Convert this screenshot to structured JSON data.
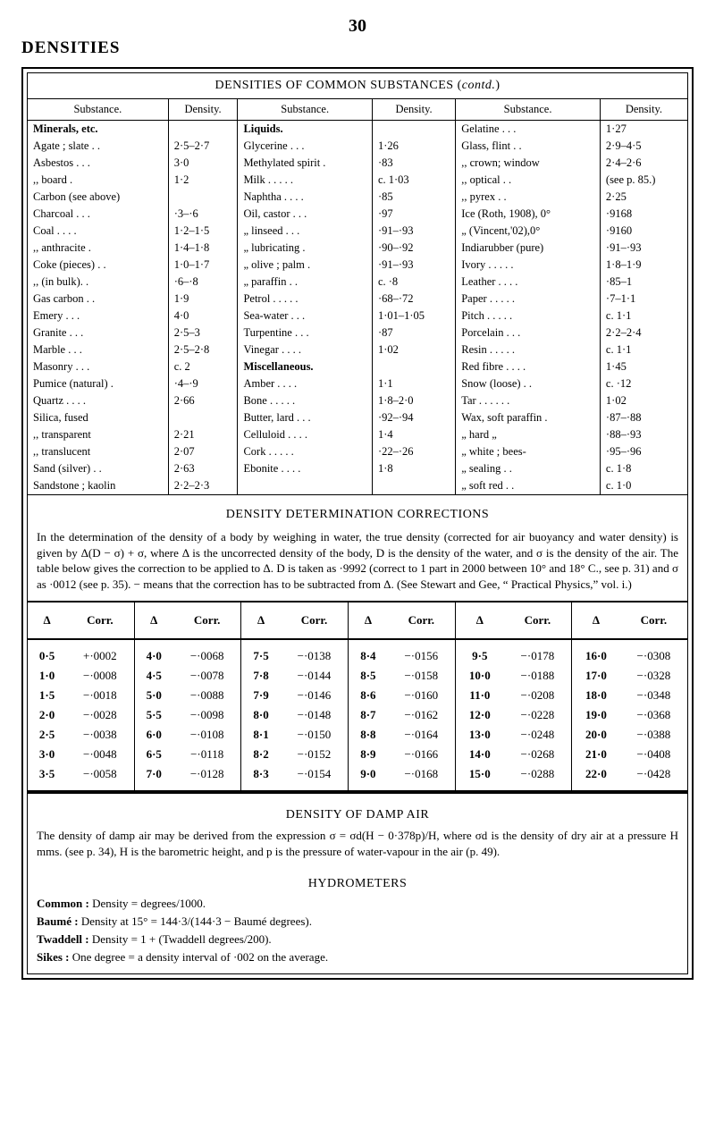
{
  "page_number": "30",
  "section_title": "DENSITIES",
  "table1": {
    "title_pre": "DENSITIES OF COMMON SUBSTANCES (",
    "title_contd": "contd.",
    "title_post": ")",
    "col_subst": "Substance.",
    "col_dens": "Density.",
    "col1": {
      "group": "Minerals, etc.",
      "rows": [
        {
          "name": "Agate ; slate .  .",
          "dens": "2·5–2·7"
        },
        {
          "name": "Asbestos  .  .  .",
          "dens": "3·0"
        },
        {
          "name": "   ,,      board    .",
          "dens": "1·2"
        },
        {
          "name": "Carbon (see above)",
          "dens": ""
        },
        {
          "name": "Charcoal  .  .  .",
          "dens": "·3–·6"
        },
        {
          "name": "Coal   .  .  .  .",
          "dens": "1·2–1·5"
        },
        {
          "name": "  ,,  anthracite  .",
          "dens": "1·4–1·8"
        },
        {
          "name": "Coke (pieces) .  .",
          "dens": "1·0–1·7"
        },
        {
          "name": "  ,,  (in bulk).  .",
          "dens": "·6–·8"
        },
        {
          "name": "Gas carbon   .  .",
          "dens": "1·9"
        },
        {
          "name": "Emery     .  .  .",
          "dens": "4·0"
        },
        {
          "name": "Granite    .  .  .",
          "dens": "2·5–3"
        },
        {
          "name": "Marble    .  .  .",
          "dens": "2·5–2·8"
        },
        {
          "name": "Masonry  .  .  .",
          "dens": "c. 2"
        },
        {
          "name": "Pumice (natural) .",
          "dens": "·4–·9"
        },
        {
          "name": "Quartz .  .  .  .",
          "dens": "2·66"
        },
        {
          "name": "Silica, fused",
          "dens": ""
        },
        {
          "name": "  ,,   transparent",
          "dens": "2·21"
        },
        {
          "name": "  ,,   translucent",
          "dens": "2·07"
        },
        {
          "name": "Sand (silver) .  .",
          "dens": "2·63"
        },
        {
          "name": "Sandstone ; kaolin",
          "dens": "2·2–2·3"
        }
      ]
    },
    "col2": {
      "group1": "Liquids.",
      "rows1": [
        {
          "name": "Glycerine   .  .  .",
          "dens": "1·26"
        },
        {
          "name": "Methylated spirit .",
          "dens": "·83"
        },
        {
          "name": "Milk  .  .  .  .  .",
          "dens": "c. 1·03"
        },
        {
          "name": "Naphtha .  .  .  .",
          "dens": "·85"
        },
        {
          "name": "Oil, castor  .  .  .",
          "dens": "·97"
        },
        {
          "name": "  „  linseed .  .  .",
          "dens": "·91–·93"
        },
        {
          "name": "  „  lubricating  .",
          "dens": "·90–·92"
        },
        {
          "name": "  „  olive ; palm .",
          "dens": "·91–·93"
        },
        {
          "name": "  „  paraffin   .  .",
          "dens": "c. ·8"
        },
        {
          "name": "Petrol .  .  .  .  .",
          "dens": "·68–·72"
        },
        {
          "name": "Sea-water   .  .  .",
          "dens": "1·01–1·05"
        },
        {
          "name": "Turpentine .  .  .",
          "dens": "·87"
        },
        {
          "name": "Vinegar .  .  .  .",
          "dens": "1·02"
        }
      ],
      "group2": "Miscellaneous.",
      "rows2": [
        {
          "name": "Amber   .  .  .  .",
          "dens": "1·1"
        },
        {
          "name": "Bone .  .  .  .  .",
          "dens": "1·8–2·0"
        },
        {
          "name": "Butter, lard .  .  .",
          "dens": "·92–·94"
        },
        {
          "name": "Celluloid .  .  .  .",
          "dens": "1·4"
        },
        {
          "name": "Cork .  .  .  .  .",
          "dens": "·22–·26"
        },
        {
          "name": "Ebonite .  .  .  .",
          "dens": "1·8"
        }
      ]
    },
    "col3": {
      "rows": [
        {
          "name": "Gelatine    .  .  .",
          "dens": "1·27"
        },
        {
          "name": "Glass, flint    .  .",
          "dens": "2·9–4·5"
        },
        {
          "name": "  ,,  crown; window",
          "dens": "2·4–2·6"
        },
        {
          "name": "  ,,   optical .  .",
          "dens": "(see p. 85.)"
        },
        {
          "name": "  ,,   pyrex   .  .",
          "dens": "2·25"
        },
        {
          "name": "Ice (Roth, 1908), 0°",
          "dens": "·9168"
        },
        {
          "name": "  „  (Vincent,'02),0°",
          "dens": "·9160"
        },
        {
          "name": "Indiarubber (pure)",
          "dens": "·91–·93"
        },
        {
          "name": "Ivory .  .  .  .  .",
          "dens": "1·8–1·9"
        },
        {
          "name": "Leather  .  .  .  .",
          "dens": "·85–1"
        },
        {
          "name": "Paper .  .  .  .  .",
          "dens": "·7–1·1"
        },
        {
          "name": "Pitch .  .  .  .  .",
          "dens": "c. 1·1"
        },
        {
          "name": "Porcelain  .  .  .",
          "dens": "2·2–2·4"
        },
        {
          "name": "Resin .  .  .  .  .",
          "dens": "c. 1·1"
        },
        {
          "name": "Red fibre .  .  .  .",
          "dens": "1·45"
        },
        {
          "name": "Snow (loose)  .  .",
          "dens": "c. ·12"
        },
        {
          "name": "Tar .  .  .  .  .  .",
          "dens": "1·02"
        },
        {
          "name": "Wax, soft paraffin .",
          "dens": "·87–·88"
        },
        {
          "name": "  „   hard    „",
          "dens": "·88–·93"
        },
        {
          "name": "  „   white ; bees-",
          "dens": "·95–·96"
        },
        {
          "name": "  „   sealing   .  .",
          "dens": "c. 1·8"
        },
        {
          "name": "  „   soft red  .  .",
          "dens": "c. 1·0"
        }
      ]
    }
  },
  "det": {
    "title": "DENSITY  DETERMINATION  CORRECTIONS",
    "para": "In the determination of the density of a body by weighing in water, the true density (corrected for air buoyancy and water density) is given by Δ(D − σ) + σ, where Δ is the uncorrected density of the body, D is the density of the water, and σ is the density of the air.  The table below gives the correction to be applied to Δ.  D is taken as ·9992 (correct to 1 part in 2000 between 10° and 18° C., see p. 31) and σ as ·0012 (see p. 35).  − means that the correction has to be subtracted from Δ.  (See Stewart and Gee, “ Practical Physics,” vol. i.)"
  },
  "corr": {
    "head_d": "Δ",
    "head_c": "Corr.",
    "pairs": [
      [
        {
          "d": "0·5",
          "c": "+·0002"
        },
        {
          "d": "1·0",
          "c": "−·0008"
        },
        {
          "d": "1·5",
          "c": "−·0018"
        },
        {
          "d": "2·0",
          "c": "−·0028"
        },
        {
          "d": "2·5",
          "c": "−·0038"
        },
        {
          "d": "3·0",
          "c": "−·0048"
        },
        {
          "d": "3·5",
          "c": "−·0058"
        }
      ],
      [
        {
          "d": "4·0",
          "c": "−·0068"
        },
        {
          "d": "4·5",
          "c": "−·0078"
        },
        {
          "d": "5·0",
          "c": "−·0088"
        },
        {
          "d": "5·5",
          "c": "−·0098"
        },
        {
          "d": "6·0",
          "c": "−·0108"
        },
        {
          "d": "6·5",
          "c": "−·0118"
        },
        {
          "d": "7·0",
          "c": "−·0128"
        }
      ],
      [
        {
          "d": "7·5",
          "c": "−·0138"
        },
        {
          "d": "7·8",
          "c": "−·0144"
        },
        {
          "d": "7·9",
          "c": "−·0146"
        },
        {
          "d": "8·0",
          "c": "−·0148"
        },
        {
          "d": "8·1",
          "c": "−·0150"
        },
        {
          "d": "8·2",
          "c": "−·0152"
        },
        {
          "d": "8·3",
          "c": "−·0154"
        }
      ],
      [
        {
          "d": "8·4",
          "c": "−·0156"
        },
        {
          "d": "8·5",
          "c": "−·0158"
        },
        {
          "d": "8·6",
          "c": "−·0160"
        },
        {
          "d": "8·7",
          "c": "−·0162"
        },
        {
          "d": "8·8",
          "c": "−·0164"
        },
        {
          "d": "8·9",
          "c": "−·0166"
        },
        {
          "d": "9·0",
          "c": "−·0168"
        }
      ],
      [
        {
          "d": "9·5",
          "c": "−·0178"
        },
        {
          "d": "10·0",
          "c": "−·0188"
        },
        {
          "d": "11·0",
          "c": "−·0208"
        },
        {
          "d": "12·0",
          "c": "−·0228"
        },
        {
          "d": "13·0",
          "c": "−·0248"
        },
        {
          "d": "14·0",
          "c": "−·0268"
        },
        {
          "d": "15·0",
          "c": "−·0288"
        }
      ],
      [
        {
          "d": "16·0",
          "c": "−·0308"
        },
        {
          "d": "17·0",
          "c": "−·0328"
        },
        {
          "d": "18·0",
          "c": "−·0348"
        },
        {
          "d": "19·0",
          "c": "−·0368"
        },
        {
          "d": "20·0",
          "c": "−·0388"
        },
        {
          "d": "21·0",
          "c": "−·0408"
        },
        {
          "d": "22·0",
          "c": "−·0428"
        }
      ]
    ]
  },
  "damp": {
    "title": "DENSITY  OF  DAMP  AIR",
    "para": "The density of damp air may be derived from the expression σ = σd(H − 0·378p)/H, where σd is the density of dry air at a pressure H mms. (see p. 34), H is the barometric height, and p is the pressure of water-vapour in the air (p. 49)."
  },
  "hydro": {
    "title": "HYDROMETERS",
    "l1_b": "Common :",
    "l1_t": " Density = degrees/1000.",
    "l2_b": "Baumé :",
    "l2_t": " Density at 15° = 144·3/(144·3 − Baumé degrees).",
    "l3_b": "Twaddell :",
    "l3_t": " Density = 1 + (Twaddell degrees/200).",
    "l4_b": "Sikes :",
    "l4_t": " One degree = a density interval of ·002 on the average."
  }
}
